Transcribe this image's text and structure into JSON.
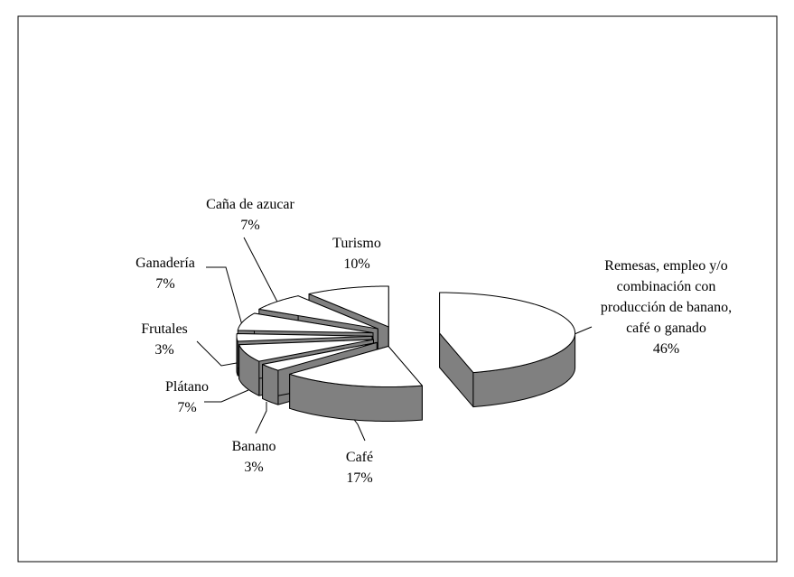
{
  "chart_data": {
    "type": "pie3d",
    "categories": [
      "Remesas, empleo y/o combinación con producción de banano, café o ganado",
      "Café",
      "Banano",
      "Plátano",
      "Frutales",
      "Ganadería",
      "Caña de azucar",
      "Turismo"
    ],
    "values": [
      46,
      17,
      3,
      7,
      3,
      7,
      7,
      10
    ],
    "value_labels": [
      "46%",
      "17%",
      "3%",
      "7%",
      "3%",
      "7%",
      "7%",
      "10%"
    ],
    "colors": {
      "top": "#ffffff",
      "side": "#808080"
    }
  }
}
